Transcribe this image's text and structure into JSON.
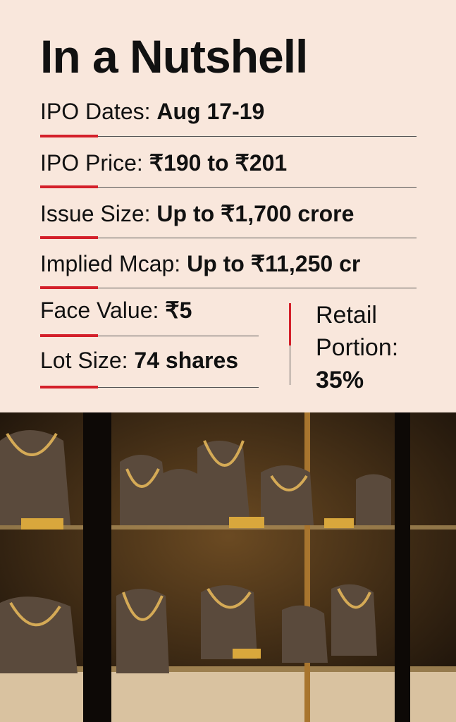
{
  "title": "In a Nutshell",
  "items": [
    {
      "label": "IPO Dates:",
      "value": "Aug 17-19"
    },
    {
      "label": "IPO Price:",
      "value": "₹190 to ₹201"
    },
    {
      "label": "Issue Size:",
      "value": "Up to ₹1,700 crore"
    },
    {
      "label": "Implied Mcap:",
      "value": "Up to ₹11,250 cr"
    },
    {
      "label": "Face Value:",
      "value": "₹5"
    },
    {
      "label": "Lot Size:",
      "value": "74 shares"
    }
  ],
  "side": {
    "label": "Retail Portion:",
    "value": "35%"
  }
}
